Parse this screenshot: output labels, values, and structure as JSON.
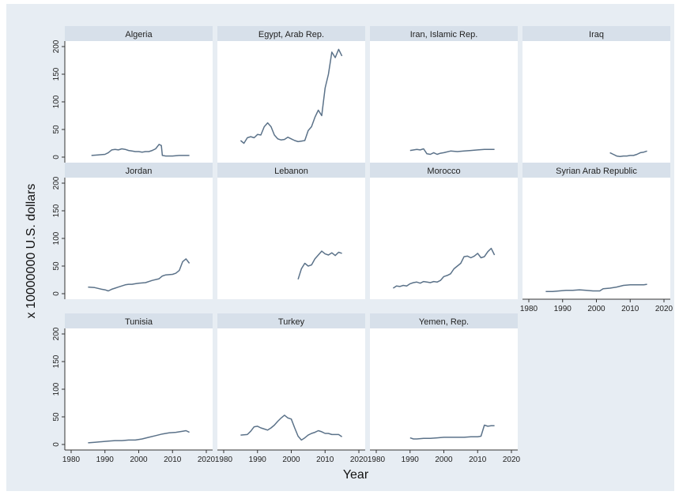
{
  "chart_data": {
    "type": "line",
    "layout": "small-multiples",
    "xlabel": "Year",
    "ylabel": "x 10000000 U.S. dollars",
    "xlim": [
      1980,
      2020
    ],
    "ylim": [
      -10,
      210
    ],
    "xticks": [
      1980,
      1990,
      2000,
      2010,
      2020
    ],
    "yticks": [
      0,
      50,
      100,
      150,
      200
    ],
    "grid": false,
    "line_color": "#5b7289",
    "panel_header_color": "#d7e0ea",
    "panels": [
      {
        "name": "Algeria",
        "values": [
          [
            1986,
            3
          ],
          [
            1988,
            4
          ],
          [
            1990,
            5
          ],
          [
            1991,
            8
          ],
          [
            1992,
            13
          ],
          [
            1993,
            14
          ],
          [
            1994,
            13
          ],
          [
            1995,
            15
          ],
          [
            1996,
            14
          ],
          [
            1997,
            12
          ],
          [
            1998,
            11
          ],
          [
            1999,
            10
          ],
          [
            2000,
            10
          ],
          [
            2001,
            9
          ],
          [
            2002,
            10
          ],
          [
            2003,
            10
          ],
          [
            2004,
            12
          ],
          [
            2005,
            15
          ],
          [
            2006,
            23
          ],
          [
            2006.7,
            21
          ],
          [
            2007,
            3
          ],
          [
            2008,
            2
          ],
          [
            2010,
            2
          ],
          [
            2012,
            3
          ],
          [
            2014,
            3
          ],
          [
            2015,
            3
          ]
        ]
      },
      {
        "name": "Egypt, Arab Rep.",
        "values": [
          [
            1985,
            30
          ],
          [
            1986,
            25
          ],
          [
            1987,
            35
          ],
          [
            1988,
            37
          ],
          [
            1989,
            35
          ],
          [
            1990,
            41
          ],
          [
            1991,
            40
          ],
          [
            1992,
            55
          ],
          [
            1993,
            62
          ],
          [
            1994,
            55
          ],
          [
            1995,
            40
          ],
          [
            1996,
            33
          ],
          [
            1997,
            31
          ],
          [
            1998,
            32
          ],
          [
            1999,
            36
          ],
          [
            2000,
            33
          ],
          [
            2001,
            30
          ],
          [
            2002,
            28
          ],
          [
            2003,
            29
          ],
          [
            2004,
            30
          ],
          [
            2005,
            48
          ],
          [
            2006,
            55
          ],
          [
            2007,
            72
          ],
          [
            2008,
            85
          ],
          [
            2009,
            75
          ],
          [
            2010,
            125
          ],
          [
            2011,
            150
          ],
          [
            2012,
            190
          ],
          [
            2013,
            180
          ],
          [
            2014,
            195
          ],
          [
            2015,
            183
          ]
        ]
      },
      {
        "name": "Iran, Islamic Rep.",
        "values": [
          [
            1990,
            12
          ],
          [
            1992,
            14
          ],
          [
            1993,
            13
          ],
          [
            1994,
            15
          ],
          [
            1995,
            6
          ],
          [
            1996,
            5
          ],
          [
            1997,
            8
          ],
          [
            1998,
            5
          ],
          [
            1999,
            7
          ],
          [
            2000,
            8
          ],
          [
            2002,
            11
          ],
          [
            2004,
            10
          ],
          [
            2006,
            11
          ],
          [
            2008,
            12
          ],
          [
            2010,
            13
          ],
          [
            2012,
            14
          ],
          [
            2014,
            14
          ],
          [
            2015,
            14
          ]
        ]
      },
      {
        "name": "Iraq",
        "values": [
          [
            2004,
            8
          ],
          [
            2005,
            5
          ],
          [
            2006,
            2
          ],
          [
            2007,
            1
          ],
          [
            2008,
            2
          ],
          [
            2009,
            2
          ],
          [
            2010,
            3
          ],
          [
            2011,
            3
          ],
          [
            2012,
            5
          ],
          [
            2013,
            8
          ],
          [
            2014,
            9
          ],
          [
            2015,
            11
          ]
        ]
      },
      {
        "name": "Jordan",
        "values": [
          [
            1985,
            12
          ],
          [
            1987,
            11
          ],
          [
            1989,
            8
          ],
          [
            1990,
            7
          ],
          [
            1991,
            5
          ],
          [
            1992,
            8
          ],
          [
            1993,
            10
          ],
          [
            1994,
            12
          ],
          [
            1995,
            14
          ],
          [
            1996,
            16
          ],
          [
            1997,
            17
          ],
          [
            1998,
            17
          ],
          [
            1999,
            18
          ],
          [
            2000,
            19
          ],
          [
            2002,
            20
          ],
          [
            2004,
            24
          ],
          [
            2006,
            27
          ],
          [
            2007,
            32
          ],
          [
            2008,
            34
          ],
          [
            2010,
            35
          ],
          [
            2011,
            37
          ],
          [
            2012,
            42
          ],
          [
            2013,
            58
          ],
          [
            2014,
            63
          ],
          [
            2015,
            55
          ]
        ]
      },
      {
        "name": "Lebanon",
        "values": [
          [
            2002,
            26
          ],
          [
            2003,
            45
          ],
          [
            2004,
            55
          ],
          [
            2005,
            50
          ],
          [
            2006,
            52
          ],
          [
            2007,
            63
          ],
          [
            2008,
            70
          ],
          [
            2009,
            77
          ],
          [
            2010,
            72
          ],
          [
            2011,
            70
          ],
          [
            2012,
            74
          ],
          [
            2013,
            69
          ],
          [
            2014,
            75
          ],
          [
            2015,
            73
          ]
        ]
      },
      {
        "name": "Morocco",
        "values": [
          [
            1985,
            10
          ],
          [
            1986,
            14
          ],
          [
            1987,
            13
          ],
          [
            1988,
            15
          ],
          [
            1989,
            14
          ],
          [
            1990,
            18
          ],
          [
            1991,
            20
          ],
          [
            1992,
            21
          ],
          [
            1993,
            19
          ],
          [
            1994,
            22
          ],
          [
            1995,
            21
          ],
          [
            1996,
            20
          ],
          [
            1997,
            22
          ],
          [
            1998,
            21
          ],
          [
            1999,
            24
          ],
          [
            2000,
            31
          ],
          [
            2001,
            33
          ],
          [
            2002,
            36
          ],
          [
            2003,
            45
          ],
          [
            2004,
            50
          ],
          [
            2005,
            55
          ],
          [
            2006,
            67
          ],
          [
            2007,
            68
          ],
          [
            2008,
            65
          ],
          [
            2009,
            68
          ],
          [
            2010,
            73
          ],
          [
            2011,
            65
          ],
          [
            2012,
            67
          ],
          [
            2013,
            76
          ],
          [
            2014,
            82
          ],
          [
            2015,
            70
          ]
        ]
      },
      {
        "name": "Syrian Arab Republic",
        "values": [
          [
            1985,
            4
          ],
          [
            1987,
            4
          ],
          [
            1989,
            5
          ],
          [
            1991,
            6
          ],
          [
            1993,
            6
          ],
          [
            1995,
            7
          ],
          [
            1997,
            6
          ],
          [
            1999,
            5
          ],
          [
            2001,
            5
          ],
          [
            2002,
            9
          ],
          [
            2004,
            10
          ],
          [
            2006,
            12
          ],
          [
            2008,
            15
          ],
          [
            2010,
            16
          ],
          [
            2012,
            16
          ],
          [
            2014,
            16
          ],
          [
            2015,
            17
          ]
        ]
      },
      {
        "name": "Tunisia",
        "values": [
          [
            1985,
            3
          ],
          [
            1987,
            4
          ],
          [
            1989,
            5
          ],
          [
            1991,
            6
          ],
          [
            1993,
            7
          ],
          [
            1995,
            7
          ],
          [
            1997,
            8
          ],
          [
            1999,
            8
          ],
          [
            2001,
            10
          ],
          [
            2003,
            13
          ],
          [
            2005,
            16
          ],
          [
            2007,
            19
          ],
          [
            2009,
            21
          ],
          [
            2011,
            22
          ],
          [
            2013,
            24
          ],
          [
            2014,
            25
          ],
          [
            2015,
            22
          ]
        ]
      },
      {
        "name": "Turkey",
        "values": [
          [
            1985,
            17
          ],
          [
            1987,
            18
          ],
          [
            1988,
            24
          ],
          [
            1989,
            32
          ],
          [
            1990,
            33
          ],
          [
            1991,
            30
          ],
          [
            1992,
            28
          ],
          [
            1993,
            26
          ],
          [
            1994,
            30
          ],
          [
            1995,
            35
          ],
          [
            1996,
            42
          ],
          [
            1997,
            48
          ],
          [
            1998,
            53
          ],
          [
            1999,
            48
          ],
          [
            2000,
            46
          ],
          [
            2001,
            30
          ],
          [
            2002,
            15
          ],
          [
            2003,
            8
          ],
          [
            2004,
            12
          ],
          [
            2005,
            17
          ],
          [
            2006,
            20
          ],
          [
            2007,
            22
          ],
          [
            2008,
            25
          ],
          [
            2009,
            23
          ],
          [
            2010,
            20
          ],
          [
            2011,
            20
          ],
          [
            2012,
            18
          ],
          [
            2013,
            18
          ],
          [
            2014,
            18
          ],
          [
            2015,
            14
          ]
        ]
      },
      {
        "name": "Yemen, Rep.",
        "values": [
          [
            1990,
            12
          ],
          [
            1991,
            10
          ],
          [
            1992,
            10
          ],
          [
            1994,
            11
          ],
          [
            1996,
            11
          ],
          [
            1998,
            12
          ],
          [
            2000,
            13
          ],
          [
            2002,
            13
          ],
          [
            2004,
            13
          ],
          [
            2006,
            13
          ],
          [
            2008,
            14
          ],
          [
            2009,
            14
          ],
          [
            2010,
            14
          ],
          [
            2011,
            15
          ],
          [
            2012,
            35
          ],
          [
            2013,
            33
          ],
          [
            2014,
            34
          ],
          [
            2015,
            34
          ]
        ]
      }
    ]
  }
}
